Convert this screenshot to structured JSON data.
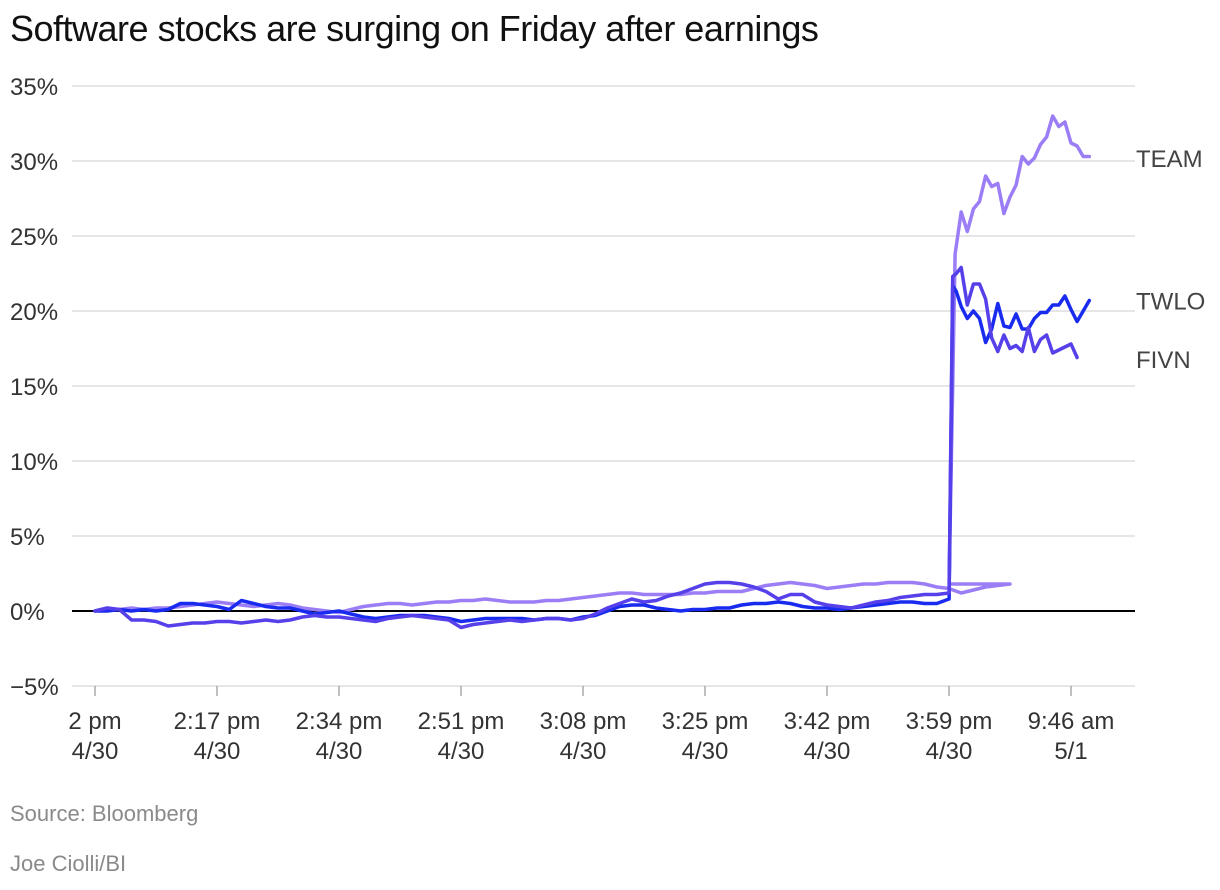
{
  "title": "Software stocks are surging on Friday after earnings",
  "source": "Source: Bloomberg",
  "credit": "Joe Ciolli/BI",
  "chart_data": {
    "type": "line",
    "title": "Software stocks are surging on Friday after earnings",
    "xlabel": "",
    "ylabel": "",
    "ylim": [
      -5,
      35
    ],
    "yticks": [
      -5,
      0,
      5,
      10,
      15,
      20,
      25,
      30,
      35
    ],
    "ytick_labels": [
      "−5%",
      "0%",
      "5%",
      "10%",
      "15%",
      "20%",
      "25%",
      "30%",
      "35%"
    ],
    "xlim": [
      0,
      85
    ],
    "xticks": [
      0,
      10,
      20,
      30,
      40,
      50,
      60,
      70,
      80
    ],
    "xtick_labels": [
      [
        "2 pm",
        "4/30"
      ],
      [
        "2:17 pm",
        "4/30"
      ],
      [
        "2:34 pm",
        "4/30"
      ],
      [
        "2:51 pm",
        "4/30"
      ],
      [
        "3:08 pm",
        "4/30"
      ],
      [
        "3:25 pm",
        "4/30"
      ],
      [
        "3:42 pm",
        "4/30"
      ],
      [
        "3:59 pm",
        "4/30"
      ],
      [
        "9:46 am",
        "5/1"
      ]
    ],
    "grid": true,
    "legend": "direct labels at right end of lines",
    "series": [
      {
        "name": "TEAM",
        "color": "#9b7ef5",
        "points": [
          [
            0,
            0
          ],
          [
            1,
            0.2
          ],
          [
            2,
            0.1
          ],
          [
            3,
            0.2
          ],
          [
            4,
            0.1
          ],
          [
            5,
            0.2
          ],
          [
            6,
            0.2
          ],
          [
            7,
            0.3
          ],
          [
            8,
            0.4
          ],
          [
            9,
            0.5
          ],
          [
            10,
            0.6
          ],
          [
            11,
            0.5
          ],
          [
            12,
            0.4
          ],
          [
            13,
            0.3
          ],
          [
            14,
            0.4
          ],
          [
            15,
            0.5
          ],
          [
            16,
            0.4
          ],
          [
            17,
            0.2
          ],
          [
            18,
            0.1
          ],
          [
            19,
            0
          ],
          [
            20,
            -0.1
          ],
          [
            21,
            0.1
          ],
          [
            22,
            0.3
          ],
          [
            23,
            0.4
          ],
          [
            24,
            0.5
          ],
          [
            25,
            0.5
          ],
          [
            26,
            0.4
          ],
          [
            27,
            0.5
          ],
          [
            28,
            0.6
          ],
          [
            29,
            0.6
          ],
          [
            30,
            0.7
          ],
          [
            31,
            0.7
          ],
          [
            32,
            0.8
          ],
          [
            33,
            0.7
          ],
          [
            34,
            0.6
          ],
          [
            35,
            0.6
          ],
          [
            36,
            0.6
          ],
          [
            37,
            0.7
          ],
          [
            38,
            0.7
          ],
          [
            39,
            0.8
          ],
          [
            40,
            0.9
          ],
          [
            41,
            1
          ],
          [
            42,
            1.1
          ],
          [
            43,
            1.2
          ],
          [
            44,
            1.2
          ],
          [
            45,
            1.1
          ],
          [
            46,
            1.1
          ],
          [
            47,
            1.1
          ],
          [
            48,
            1.1
          ],
          [
            49,
            1.2
          ],
          [
            50,
            1.2
          ],
          [
            51,
            1.3
          ],
          [
            52,
            1.3
          ],
          [
            53,
            1.3
          ],
          [
            54,
            1.5
          ],
          [
            55,
            1.7
          ],
          [
            56,
            1.8
          ],
          [
            57,
            1.9
          ],
          [
            58,
            1.8
          ],
          [
            59,
            1.7
          ],
          [
            60,
            1.5
          ],
          [
            61,
            1.6
          ],
          [
            62,
            1.7
          ],
          [
            63,
            1.8
          ],
          [
            64,
            1.8
          ],
          [
            65,
            1.9
          ],
          [
            66,
            1.9
          ],
          [
            67,
            1.9
          ],
          [
            68,
            1.8
          ],
          [
            69,
            1.6
          ],
          [
            70,
            1.5
          ],
          [
            71,
            1.2
          ],
          [
            72,
            1.4
          ],
          [
            73,
            1.6
          ],
          [
            74,
            1.7
          ],
          [
            75,
            1.8
          ],
          [
            70.01,
            1.8
          ],
          [
            70.5,
            23.8
          ],
          [
            71,
            26.6
          ],
          [
            71.5,
            25.3
          ],
          [
            72,
            26.8
          ],
          [
            72.5,
            27.3
          ],
          [
            73,
            29
          ],
          [
            73.5,
            28.3
          ],
          [
            74,
            28.5
          ],
          [
            74.5,
            26.5
          ],
          [
            75,
            27.6
          ],
          [
            75.5,
            28.4
          ],
          [
            76,
            30.3
          ],
          [
            76.5,
            29.8
          ],
          [
            77,
            30.2
          ],
          [
            77.5,
            31.1
          ],
          [
            78,
            31.6
          ],
          [
            78.5,
            33
          ],
          [
            79,
            32.3
          ],
          [
            79.5,
            32.6
          ],
          [
            80,
            31.2
          ],
          [
            80.5,
            31
          ],
          [
            81,
            30.3
          ],
          [
            81.5,
            30.3
          ]
        ]
      },
      {
        "name": "TWLO",
        "color": "#1a2bf0",
        "points": [
          [
            0,
            0
          ],
          [
            1,
            0
          ],
          [
            2,
            0.1
          ],
          [
            3,
            0
          ],
          [
            4,
            0.1
          ],
          [
            5,
            0
          ],
          [
            6,
            0.1
          ],
          [
            7,
            0.5
          ],
          [
            8,
            0.5
          ],
          [
            9,
            0.4
          ],
          [
            10,
            0.3
          ],
          [
            11,
            0.1
          ],
          [
            12,
            0.7
          ],
          [
            13,
            0.5
          ],
          [
            14,
            0.3
          ],
          [
            15,
            0.2
          ],
          [
            16,
            0.2
          ],
          [
            17,
            0
          ],
          [
            18,
            -0.2
          ],
          [
            19,
            -0.1
          ],
          [
            20,
            0
          ],
          [
            21,
            -0.2
          ],
          [
            22,
            -0.4
          ],
          [
            23,
            -0.5
          ],
          [
            24,
            -0.4
          ],
          [
            25,
            -0.3
          ],
          [
            26,
            -0.3
          ],
          [
            27,
            -0.3
          ],
          [
            28,
            -0.4
          ],
          [
            29,
            -0.5
          ],
          [
            30,
            -0.7
          ],
          [
            31,
            -0.6
          ],
          [
            32,
            -0.5
          ],
          [
            33,
            -0.5
          ],
          [
            34,
            -0.5
          ],
          [
            35,
            -0.5
          ],
          [
            36,
            -0.6
          ],
          [
            37,
            -0.5
          ],
          [
            38,
            -0.5
          ],
          [
            39,
            -0.6
          ],
          [
            40,
            -0.4
          ],
          [
            41,
            -0.3
          ],
          [
            42,
            0
          ],
          [
            43,
            0.3
          ],
          [
            44,
            0.4
          ],
          [
            45,
            0.4
          ],
          [
            46,
            0.2
          ],
          [
            47,
            0.1
          ],
          [
            48,
            0
          ],
          [
            49,
            0.1
          ],
          [
            50,
            0.1
          ],
          [
            51,
            0.2
          ],
          [
            52,
            0.2
          ],
          [
            53,
            0.4
          ],
          [
            54,
            0.5
          ],
          [
            55,
            0.5
          ],
          [
            56,
            0.6
          ],
          [
            57,
            0.5
          ],
          [
            58,
            0.3
          ],
          [
            59,
            0.2
          ],
          [
            60,
            0.2
          ],
          [
            61,
            0.1
          ],
          [
            62,
            0.2
          ],
          [
            63,
            0.3
          ],
          [
            64,
            0.4
          ],
          [
            65,
            0.5
          ],
          [
            66,
            0.6
          ],
          [
            67,
            0.6
          ],
          [
            68,
            0.5
          ],
          [
            69,
            0.5
          ],
          [
            70,
            0.8
          ],
          [
            70.01,
            0.8
          ],
          [
            70.3,
            21.7
          ],
          [
            70.6,
            21.3
          ],
          [
            71,
            20.3
          ],
          [
            71.5,
            19.5
          ],
          [
            72,
            20
          ],
          [
            72.5,
            19.5
          ],
          [
            73,
            17.9
          ],
          [
            73.5,
            18.8
          ],
          [
            74,
            20.5
          ],
          [
            74.5,
            19
          ],
          [
            75,
            18.9
          ],
          [
            75.5,
            19.8
          ],
          [
            76,
            18.8
          ],
          [
            76.5,
            18.8
          ],
          [
            77,
            19.5
          ],
          [
            77.5,
            19.9
          ],
          [
            78,
            19.9
          ],
          [
            78.5,
            20.4
          ],
          [
            79,
            20.4
          ],
          [
            79.5,
            21
          ],
          [
            80,
            20.1
          ],
          [
            80.5,
            19.3
          ],
          [
            81,
            20
          ],
          [
            81.5,
            20.7
          ]
        ]
      },
      {
        "name": "FIVN",
        "color": "#5540ea",
        "points": [
          [
            0,
            0
          ],
          [
            1,
            0.2
          ],
          [
            2,
            0.1
          ],
          [
            3,
            -0.6
          ],
          [
            4,
            -0.6
          ],
          [
            5,
            -0.7
          ],
          [
            6,
            -1
          ],
          [
            7,
            -0.9
          ],
          [
            8,
            -0.8
          ],
          [
            9,
            -0.8
          ],
          [
            10,
            -0.7
          ],
          [
            11,
            -0.7
          ],
          [
            12,
            -0.8
          ],
          [
            13,
            -0.7
          ],
          [
            14,
            -0.6
          ],
          [
            15,
            -0.7
          ],
          [
            16,
            -0.6
          ],
          [
            17,
            -0.4
          ],
          [
            18,
            -0.3
          ],
          [
            19,
            -0.4
          ],
          [
            20,
            -0.4
          ],
          [
            21,
            -0.5
          ],
          [
            22,
            -0.6
          ],
          [
            23,
            -0.7
          ],
          [
            24,
            -0.5
          ],
          [
            25,
            -0.4
          ],
          [
            26,
            -0.3
          ],
          [
            27,
            -0.4
          ],
          [
            28,
            -0.5
          ],
          [
            29,
            -0.6
          ],
          [
            30,
            -1.1
          ],
          [
            31,
            -0.9
          ],
          [
            32,
            -0.8
          ],
          [
            33,
            -0.7
          ],
          [
            34,
            -0.6
          ],
          [
            35,
            -0.7
          ],
          [
            36,
            -0.6
          ],
          [
            37,
            -0.5
          ],
          [
            38,
            -0.5
          ],
          [
            39,
            -0.6
          ],
          [
            40,
            -0.5
          ],
          [
            41,
            -0.2
          ],
          [
            42,
            0.2
          ],
          [
            43,
            0.5
          ],
          [
            44,
            0.8
          ],
          [
            45,
            0.6
          ],
          [
            46,
            0.7
          ],
          [
            47,
            1
          ],
          [
            48,
            1.2
          ],
          [
            49,
            1.5
          ],
          [
            50,
            1.8
          ],
          [
            51,
            1.9
          ],
          [
            52,
            1.9
          ],
          [
            53,
            1.8
          ],
          [
            54,
            1.6
          ],
          [
            55,
            1.3
          ],
          [
            56,
            0.8
          ],
          [
            57,
            1.1
          ],
          [
            58,
            1.1
          ],
          [
            59,
            0.6
          ],
          [
            60,
            0.4
          ],
          [
            61,
            0.3
          ],
          [
            62,
            0.2
          ],
          [
            63,
            0.4
          ],
          [
            64,
            0.6
          ],
          [
            65,
            0.7
          ],
          [
            66,
            0.9
          ],
          [
            67,
            1
          ],
          [
            68,
            1.1
          ],
          [
            69,
            1.1
          ],
          [
            70,
            1.2
          ],
          [
            70.01,
            1.2
          ],
          [
            70.3,
            22.3
          ],
          [
            70.6,
            22.5
          ],
          [
            71,
            22.9
          ],
          [
            71.5,
            20.4
          ],
          [
            72,
            21.8
          ],
          [
            72.5,
            21.8
          ],
          [
            73,
            20.8
          ],
          [
            73.5,
            18.2
          ],
          [
            74,
            17.3
          ],
          [
            74.5,
            18.4
          ],
          [
            75,
            17.5
          ],
          [
            75.5,
            17.7
          ],
          [
            76,
            17.3
          ],
          [
            76.5,
            18.9
          ],
          [
            77,
            17.3
          ],
          [
            77.5,
            18.1
          ],
          [
            78,
            18.4
          ],
          [
            78.5,
            17.2
          ],
          [
            79,
            17.4
          ],
          [
            79.5,
            17.6
          ],
          [
            80,
            17.8
          ],
          [
            80.5,
            16.9
          ]
        ]
      }
    ]
  },
  "colors": {
    "grid": "#dddddd",
    "zero_line": "#000000",
    "axis_ticks": "#aaaaaa"
  }
}
